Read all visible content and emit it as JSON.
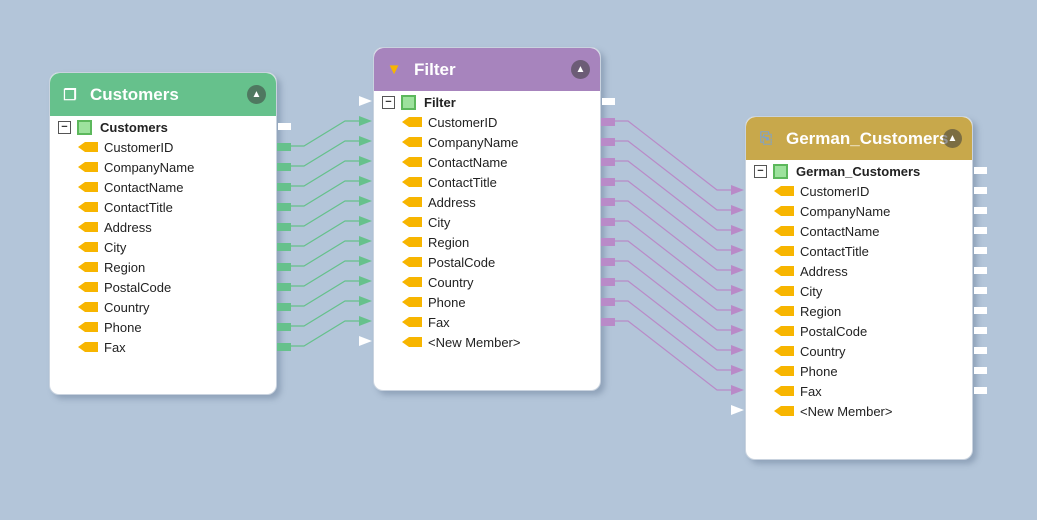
{
  "colors": {
    "customers": "#66c18c",
    "filter": "#a784bd",
    "german": "#c8a84b",
    "green_wire": "#66c18c",
    "purple_wire": "#b98ac8"
  },
  "customers": {
    "title": "Customers",
    "icon": "tables-icon",
    "root": "Customers",
    "members": [
      "CustomerID",
      "CompanyName",
      "ContactName",
      "ContactTitle",
      "Address",
      "City",
      "Region",
      "PostalCode",
      "Country",
      "Phone",
      "Fax"
    ]
  },
  "filter": {
    "title": "Filter",
    "icon": "funnel-icon",
    "root": "Filter",
    "members": [
      "CustomerID",
      "CompanyName",
      "ContactName",
      "ContactTitle",
      "Address",
      "City",
      "Region",
      "PostalCode",
      "Country",
      "Phone",
      "Fax",
      "<New Member>"
    ]
  },
  "german": {
    "title": "German_Customers",
    "icon": "table-export-icon",
    "root": "German_Customers",
    "members": [
      "CustomerID",
      "CompanyName",
      "ContactName",
      "ContactTitle",
      "Address",
      "City",
      "Region",
      "PostalCode",
      "Country",
      "Phone",
      "Fax",
      "<New Member>"
    ]
  }
}
